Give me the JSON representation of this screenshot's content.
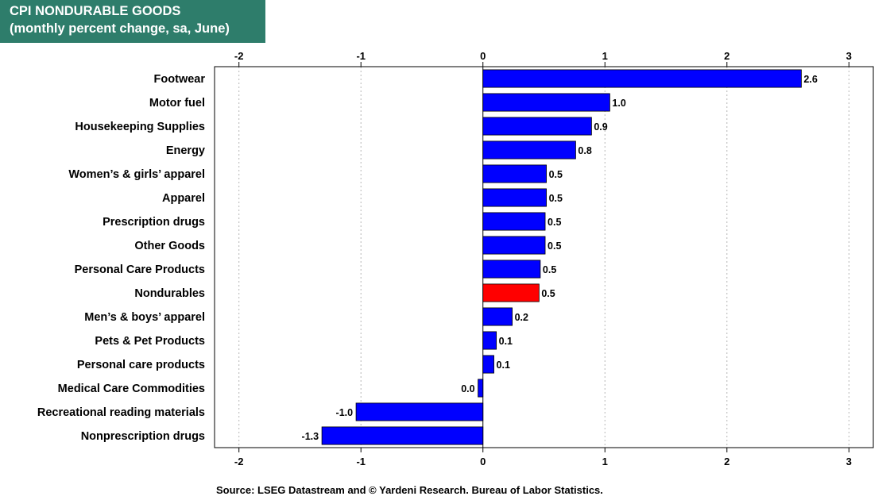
{
  "chart_data": {
    "type": "bar",
    "orientation": "horizontal",
    "title": "CPI NONDURABLE GOODS",
    "subtitle": "(monthly percent change, sa,  June)",
    "categories": [
      "Footwear",
      "Motor fuel",
      "Housekeeping Supplies",
      "Energy",
      "Women’s & girls’ apparel",
      "Apparel",
      "Prescription drugs",
      "Other Goods",
      "Personal Care Products",
      "Nondurables",
      "Men’s & boys’ apparel",
      "Pets & Pet Products",
      "Personal care products",
      "Medical Care Commodities",
      "Recreational reading materials",
      "Nonprescription drugs"
    ],
    "values": [
      2.61,
      1.04,
      0.89,
      0.76,
      0.52,
      0.52,
      0.51,
      0.51,
      0.47,
      0.46,
      0.24,
      0.11,
      0.09,
      -0.04,
      -1.04,
      -1.32
    ],
    "value_labels": [
      "2.6",
      "1.0",
      "0.9",
      "0.8",
      "0.5",
      "0.5",
      "0.5",
      "0.5",
      "0.5",
      "0.5",
      "0.2",
      "0.1",
      "0.1",
      "0.0",
      "-1.0",
      "-1.3"
    ],
    "highlight_index": 9,
    "xlim": [
      -2.2,
      3.2
    ],
    "xticks": [
      -2,
      -1,
      0,
      1,
      2,
      3
    ],
    "xtick_labels": [
      "-2",
      "-1",
      "0",
      "1",
      "2",
      "3"
    ],
    "grid": true,
    "colors": {
      "bar": "#0000ff",
      "highlight": "#ff0000",
      "title_bg": "#2e7d6b"
    }
  },
  "source": "Source: LSEG Datastream and © Yardeni Research. Bureau of Labor Statistics."
}
